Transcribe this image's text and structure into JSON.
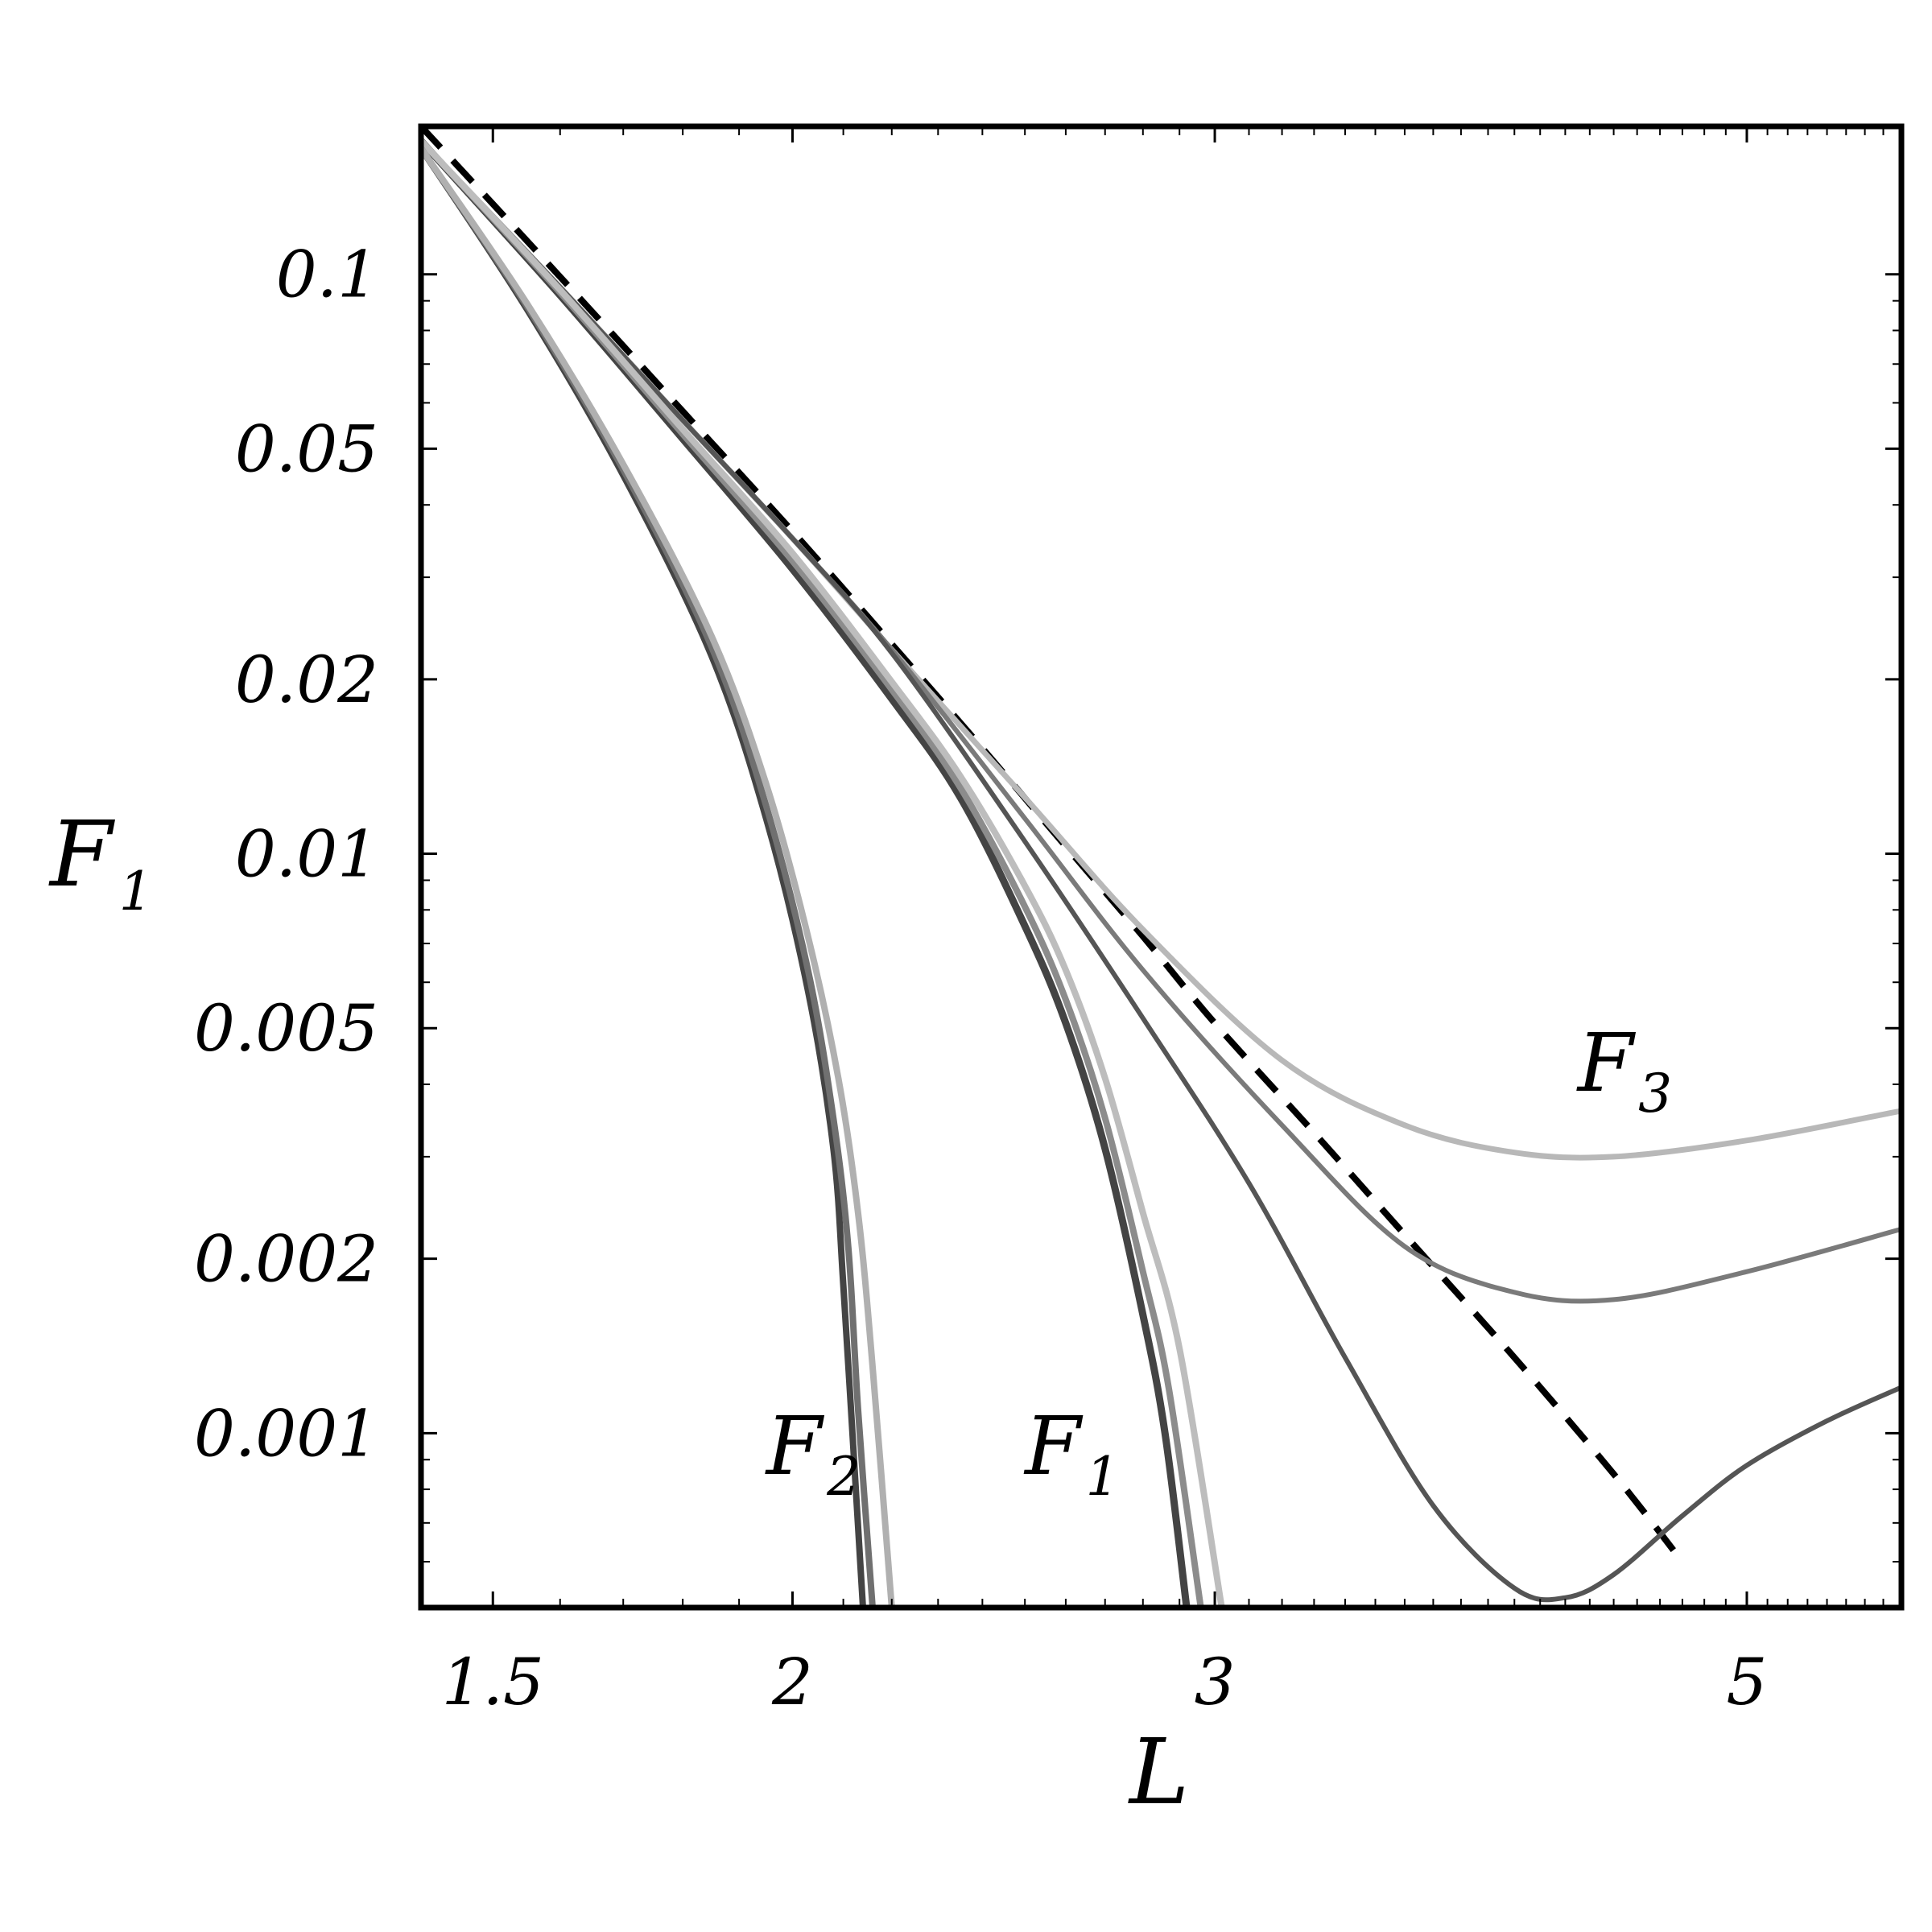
{
  "chart_data": {
    "type": "line",
    "xlabel": "L",
    "ylabel": "F",
    "ylabel_sub": "1",
    "x_scale": "log",
    "y_scale": "log",
    "xlim": [
      1.4,
      5.8
    ],
    "ylim": [
      0.0005,
      0.18
    ],
    "x_ticks": [
      {
        "value": 1.5,
        "label": "1.5"
      },
      {
        "value": 2,
        "label": "2"
      },
      {
        "value": 3,
        "label": "3"
      },
      {
        "value": 5,
        "label": "5"
      }
    ],
    "y_ticks": [
      {
        "value": 0.1,
        "label": "0.1"
      },
      {
        "value": 0.05,
        "label": "0.05"
      },
      {
        "value": 0.02,
        "label": "0.02"
      },
      {
        "value": 0.01,
        "label": "0.01"
      },
      {
        "value": 0.005,
        "label": "0.005"
      },
      {
        "value": 0.002,
        "label": "0.002"
      },
      {
        "value": 0.001,
        "label": "0.001"
      }
    ],
    "grid": false,
    "annotations": [
      {
        "text": "F",
        "sub": "2",
        "x": 1.95,
        "y": 0.00085
      },
      {
        "text": "F",
        "sub": "1",
        "x": 2.5,
        "y": 0.00085
      },
      {
        "text": "F",
        "sub": "3",
        "x": 4.25,
        "y": 0.0039
      }
    ],
    "series": [
      {
        "style": "dashed",
        "color": "#000000",
        "width": 8,
        "x": [
          1.4,
          1.6,
          1.8,
          2.0,
          2.2,
          2.4,
          2.6,
          2.8,
          3.0,
          3.3,
          3.6,
          4.0,
          4.4,
          4.7
        ],
        "y": [
          0.18,
          0.099,
          0.058,
          0.036,
          0.023,
          0.0152,
          0.0103,
          0.0072,
          0.0051,
          0.0033,
          0.0022,
          0.00135,
          0.00085,
          0.0006
        ]
      },
      {
        "style": "solid",
        "color": "#b8b8b8",
        "width": 7,
        "x": [
          1.4,
          1.6,
          1.8,
          2.0,
          2.2,
          2.5,
          2.8,
          3.2,
          3.6,
          4.0,
          4.4,
          5.0,
          5.8
        ],
        "y": [
          0.17,
          0.095,
          0.056,
          0.035,
          0.0225,
          0.0125,
          0.0074,
          0.0044,
          0.0034,
          0.00305,
          0.003,
          0.0032,
          0.0036
        ]
      },
      {
        "style": "solid",
        "color": "#7a7a7a",
        "width": 6,
        "x": [
          1.4,
          1.6,
          1.8,
          2.0,
          2.2,
          2.5,
          2.8,
          3.2,
          3.6,
          4.0,
          4.4,
          5.0,
          5.8
        ],
        "y": [
          0.17,
          0.095,
          0.056,
          0.035,
          0.0225,
          0.0115,
          0.0063,
          0.0034,
          0.0021,
          0.00175,
          0.0017,
          0.0019,
          0.00225
        ]
      },
      {
        "style": "solid",
        "color": "#555555",
        "width": 6,
        "x": [
          1.4,
          1.6,
          1.8,
          2.0,
          2.2,
          2.5,
          2.8,
          3.1,
          3.4,
          3.7,
          4.0,
          4.2,
          4.4,
          4.7,
          5.0,
          5.4,
          5.8
        ],
        "y": [
          0.17,
          0.095,
          0.056,
          0.035,
          0.0222,
          0.0105,
          0.0052,
          0.0027,
          0.00135,
          0.00075,
          0.00054,
          0.00052,
          0.00057,
          0.00072,
          0.00088,
          0.00105,
          0.0012
        ]
      },
      {
        "style": "solid",
        "color": "#444444",
        "width": 9,
        "x": [
          1.4,
          1.6,
          1.8,
          2.0,
          2.2,
          2.35,
          2.5,
          2.6,
          2.7,
          2.8,
          2.86,
          2.92
        ],
        "y": [
          0.17,
          0.092,
          0.052,
          0.031,
          0.0185,
          0.0125,
          0.0075,
          0.0051,
          0.0031,
          0.0016,
          0.001,
          0.0005
        ]
      },
      {
        "style": "solid",
        "color": "#8c8c8c",
        "width": 8,
        "x": [
          1.4,
          1.6,
          1.8,
          2.0,
          2.2,
          2.35,
          2.5,
          2.6,
          2.7,
          2.8,
          2.87,
          2.96
        ],
        "y": [
          0.17,
          0.093,
          0.053,
          0.032,
          0.0192,
          0.013,
          0.0081,
          0.0056,
          0.0035,
          0.0019,
          0.0012,
          0.0005
        ]
      },
      {
        "style": "solid",
        "color": "#bdbdbd",
        "width": 8,
        "x": [
          1.4,
          1.6,
          1.8,
          2.0,
          2.2,
          2.35,
          2.5,
          2.6,
          2.7,
          2.8,
          2.9,
          3.02
        ],
        "y": [
          0.17,
          0.094,
          0.054,
          0.033,
          0.0198,
          0.0136,
          0.0088,
          0.0063,
          0.0041,
          0.0024,
          0.0014,
          0.0005
        ]
      },
      {
        "style": "solid",
        "color": "#444444",
        "width": 8,
        "x": [
          1.4,
          1.55,
          1.7,
          1.85,
          1.95,
          2.03,
          2.08,
          2.1,
          2.12,
          2.14
        ],
        "y": [
          0.165,
          0.087,
          0.045,
          0.022,
          0.0115,
          0.0058,
          0.0031,
          0.0018,
          0.00095,
          0.0005
        ]
      },
      {
        "style": "solid",
        "color": "#707070",
        "width": 8,
        "x": [
          1.4,
          1.55,
          1.7,
          1.85,
          1.95,
          2.03,
          2.08,
          2.11,
          2.13,
          2.16
        ],
        "y": [
          0.165,
          0.088,
          0.046,
          0.0228,
          0.0121,
          0.0063,
          0.0035,
          0.0021,
          0.0011,
          0.0005
        ]
      },
      {
        "style": "solid",
        "color": "#b0b0b0",
        "width": 8,
        "x": [
          1.4,
          1.55,
          1.7,
          1.85,
          1.95,
          2.03,
          2.09,
          2.13,
          2.16,
          2.2
        ],
        "y": [
          0.165,
          0.089,
          0.047,
          0.0238,
          0.0132,
          0.0072,
          0.0041,
          0.0024,
          0.0013,
          0.0005
        ]
      }
    ]
  }
}
